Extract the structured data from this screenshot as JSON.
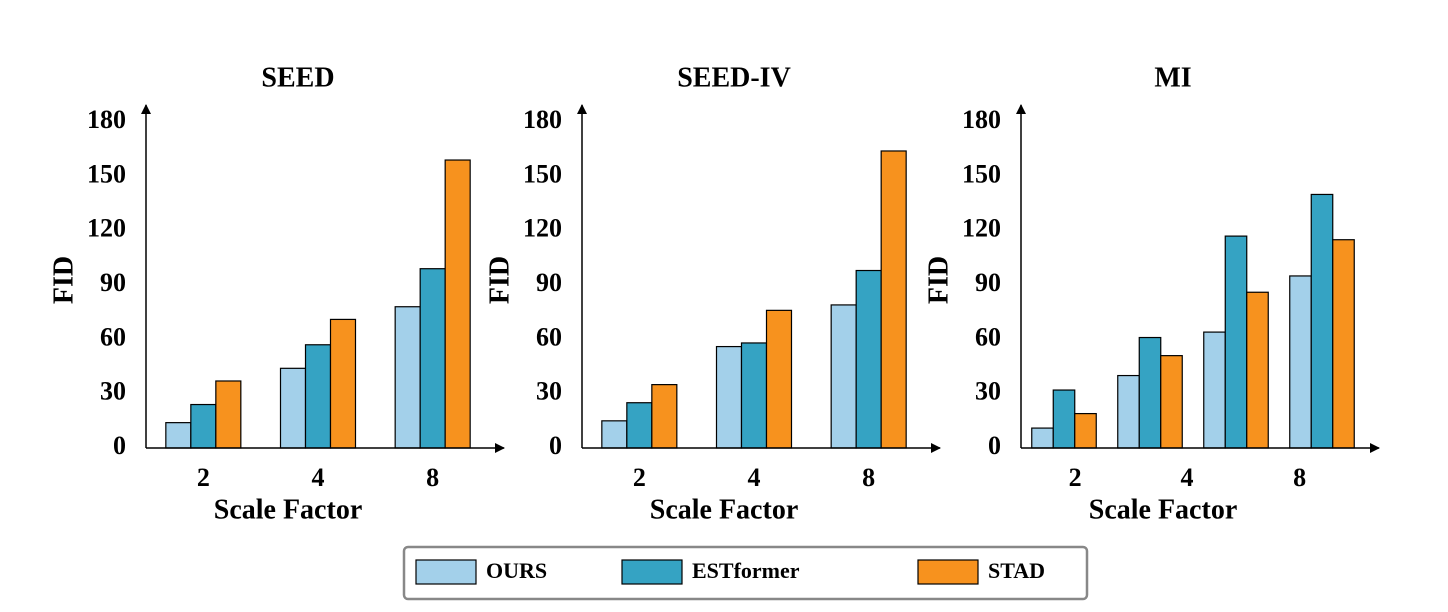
{
  "chart_data": [
    {
      "type": "bar",
      "title": "SEED",
      "ylabel": "FID",
      "xlabel": "Scale Factor",
      "categories": [
        "2",
        "4",
        "8"
      ],
      "series": [
        {
          "name": "OURS",
          "color": "#a3d0ea",
          "values": [
            14,
            44,
            78
          ]
        },
        {
          "name": "ESTformer",
          "color": "#35a3c3",
          "values": [
            24,
            57,
            99
          ]
        },
        {
          "name": "STAD",
          "color": "#f7921e",
          "values": [
            37,
            71,
            159
          ]
        }
      ],
      "ylim": [
        0,
        180
      ],
      "yticks": [
        0,
        30,
        60,
        90,
        120,
        150,
        180
      ]
    },
    {
      "type": "bar",
      "title": "SEED-IV",
      "ylabel": "FID",
      "xlabel": "Scale Factor",
      "categories": [
        "2",
        "4",
        "8"
      ],
      "series": [
        {
          "name": "OURS",
          "color": "#a3d0ea",
          "values": [
            15,
            56,
            79
          ]
        },
        {
          "name": "ESTformer",
          "color": "#35a3c3",
          "values": [
            25,
            58,
            98
          ]
        },
        {
          "name": "STAD",
          "color": "#f7921e",
          "values": [
            35,
            76,
            164
          ]
        }
      ],
      "ylim": [
        0,
        180
      ],
      "yticks": [
        0,
        30,
        60,
        90,
        120,
        150,
        180
      ]
    },
    {
      "type": "bar",
      "title": "MI",
      "ylabel": "FID",
      "xlabel": "Scale Factor",
      "categories": [
        null,
        null,
        null,
        null
      ],
      "xticks": [
        {
          "value": 0.13,
          "label": "2"
        },
        {
          "value": 1.43,
          "label": "4"
        },
        {
          "value": 2.74,
          "label": "8"
        }
      ],
      "series": [
        {
          "name": "OURS",
          "color": "#a3d0ea",
          "values": [
            11,
            40,
            64,
            95
          ]
        },
        {
          "name": "ESTformer",
          "color": "#35a3c3",
          "values": [
            32,
            61,
            117,
            140
          ]
        },
        {
          "name": "STAD",
          "color": "#f7921e",
          "values": [
            19,
            51,
            86,
            115
          ]
        }
      ],
      "ylim": [
        0,
        180
      ],
      "yticks": [
        0,
        30,
        60,
        90,
        120,
        150,
        180
      ]
    }
  ]
}
